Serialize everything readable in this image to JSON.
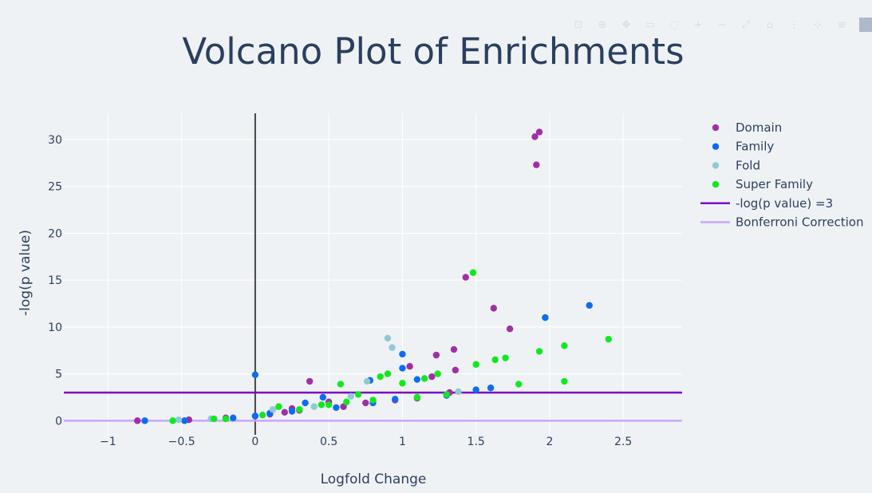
{
  "modebar": {
    "buttons": [
      "camera-icon",
      "zoom-icon",
      "pan-icon",
      "box-select-icon",
      "lasso-icon",
      "zoom-in-icon",
      "zoom-out-icon",
      "autoscale-icon",
      "reset-axes-icon",
      "spike-lines-icon",
      "hover-closest-icon",
      "hover-compare-icon"
    ],
    "logo": "plotly-logo-icon"
  },
  "chart_data": {
    "type": "scatter",
    "title": "Volcano Plot of Enrichments",
    "xlabel": "Logfold Change",
    "ylabel": "-log(p value)",
    "xlim": [
      -1.3,
      2.9
    ],
    "ylim": [
      -1.5,
      32.8
    ],
    "xticks": [
      -1,
      -0.5,
      0,
      0.5,
      1,
      1.5,
      2,
      2.5
    ],
    "xtick_labels": [
      "−1",
      "−0.5",
      "0",
      "0.5",
      "1",
      "1.5",
      "2",
      "2.5"
    ],
    "yticks": [
      0,
      5,
      10,
      15,
      20,
      25,
      30
    ],
    "ytick_labels": [
      "0",
      "5",
      "10",
      "15",
      "20",
      "25",
      "30"
    ],
    "grid": true,
    "legend_position": "right",
    "series": [
      {
        "name": "Domain",
        "color": "#a12ea5",
        "points": [
          [
            -0.8,
            0
          ],
          [
            -0.45,
            0.1
          ],
          [
            -0.2,
            0.3
          ],
          [
            0,
            0.5
          ],
          [
            0.1,
            0.7
          ],
          [
            0.2,
            0.9
          ],
          [
            0.25,
            1.3
          ],
          [
            0.3,
            1.1
          ],
          [
            0.37,
            4.2
          ],
          [
            0.5,
            2.0
          ],
          [
            0.6,
            1.5
          ],
          [
            0.75,
            1.9
          ],
          [
            0.95,
            2.2
          ],
          [
            1.05,
            5.8
          ],
          [
            1.1,
            2.4
          ],
          [
            1.2,
            4.7
          ],
          [
            1.23,
            7.0
          ],
          [
            1.32,
            3.0
          ],
          [
            1.35,
            7.6
          ],
          [
            1.36,
            5.4
          ],
          [
            1.43,
            15.3
          ],
          [
            1.62,
            12.0
          ],
          [
            1.73,
            9.8
          ],
          [
            1.9,
            30.3
          ],
          [
            1.93,
            30.8
          ],
          [
            1.91,
            27.3
          ]
        ]
      },
      {
        "name": "Family",
        "color": "#0d6cf0",
        "points": [
          [
            -0.75,
            0
          ],
          [
            -0.48,
            0
          ],
          [
            -0.15,
            0.3
          ],
          [
            0,
            4.9
          ],
          [
            0,
            0.5
          ],
          [
            0.1,
            0.8
          ],
          [
            0.25,
            1.0
          ],
          [
            0.34,
            1.9
          ],
          [
            0.46,
            2.5
          ],
          [
            0.55,
            1.4
          ],
          [
            0.78,
            4.3
          ],
          [
            0.8,
            1.9
          ],
          [
            0.95,
            2.3
          ],
          [
            1.0,
            7.1
          ],
          [
            1.0,
            5.6
          ],
          [
            1.1,
            4.4
          ],
          [
            1.3,
            2.7
          ],
          [
            1.5,
            3.3
          ],
          [
            1.6,
            3.5
          ],
          [
            1.97,
            11.0
          ],
          [
            2.27,
            12.3
          ]
        ]
      },
      {
        "name": "Fold",
        "color": "#8fc9d6",
        "points": [
          [
            -0.52,
            0.1
          ],
          [
            -0.3,
            0.2
          ],
          [
            0.12,
            1.2
          ],
          [
            0.4,
            1.5
          ],
          [
            0.65,
            2.6
          ],
          [
            0.76,
            4.2
          ],
          [
            0.9,
            8.8
          ],
          [
            0.93,
            7.8
          ],
          [
            1.38,
            3.1
          ]
        ]
      },
      {
        "name": "Super Family",
        "color": "#12e81e",
        "points": [
          [
            -0.56,
            0
          ],
          [
            -0.28,
            0.2
          ],
          [
            -0.2,
            0.2
          ],
          [
            0.05,
            0.6
          ],
          [
            0.16,
            1.5
          ],
          [
            0.3,
            1.2
          ],
          [
            0.45,
            1.7
          ],
          [
            0.5,
            1.7
          ],
          [
            0.58,
            3.9
          ],
          [
            0.62,
            2.0
          ],
          [
            0.7,
            2.8
          ],
          [
            0.8,
            2.2
          ],
          [
            0.85,
            4.7
          ],
          [
            0.9,
            5.0
          ],
          [
            1.0,
            4.0
          ],
          [
            1.1,
            2.5
          ],
          [
            1.15,
            4.5
          ],
          [
            1.24,
            5.0
          ],
          [
            1.3,
            2.8
          ],
          [
            1.48,
            15.8
          ],
          [
            1.5,
            6.0
          ],
          [
            1.63,
            6.5
          ],
          [
            1.7,
            6.7
          ],
          [
            1.79,
            3.9
          ],
          [
            1.93,
            7.4
          ],
          [
            2.1,
            8.0
          ],
          [
            2.1,
            4.2
          ],
          [
            2.4,
            8.7
          ]
        ]
      }
    ],
    "lines": [
      {
        "name": "-log(p value) =3",
        "color": "#7a06c9",
        "y": 3
      },
      {
        "name": "Bonferroni Correction",
        "color": "#c9a4ff",
        "y": 0
      }
    ]
  }
}
